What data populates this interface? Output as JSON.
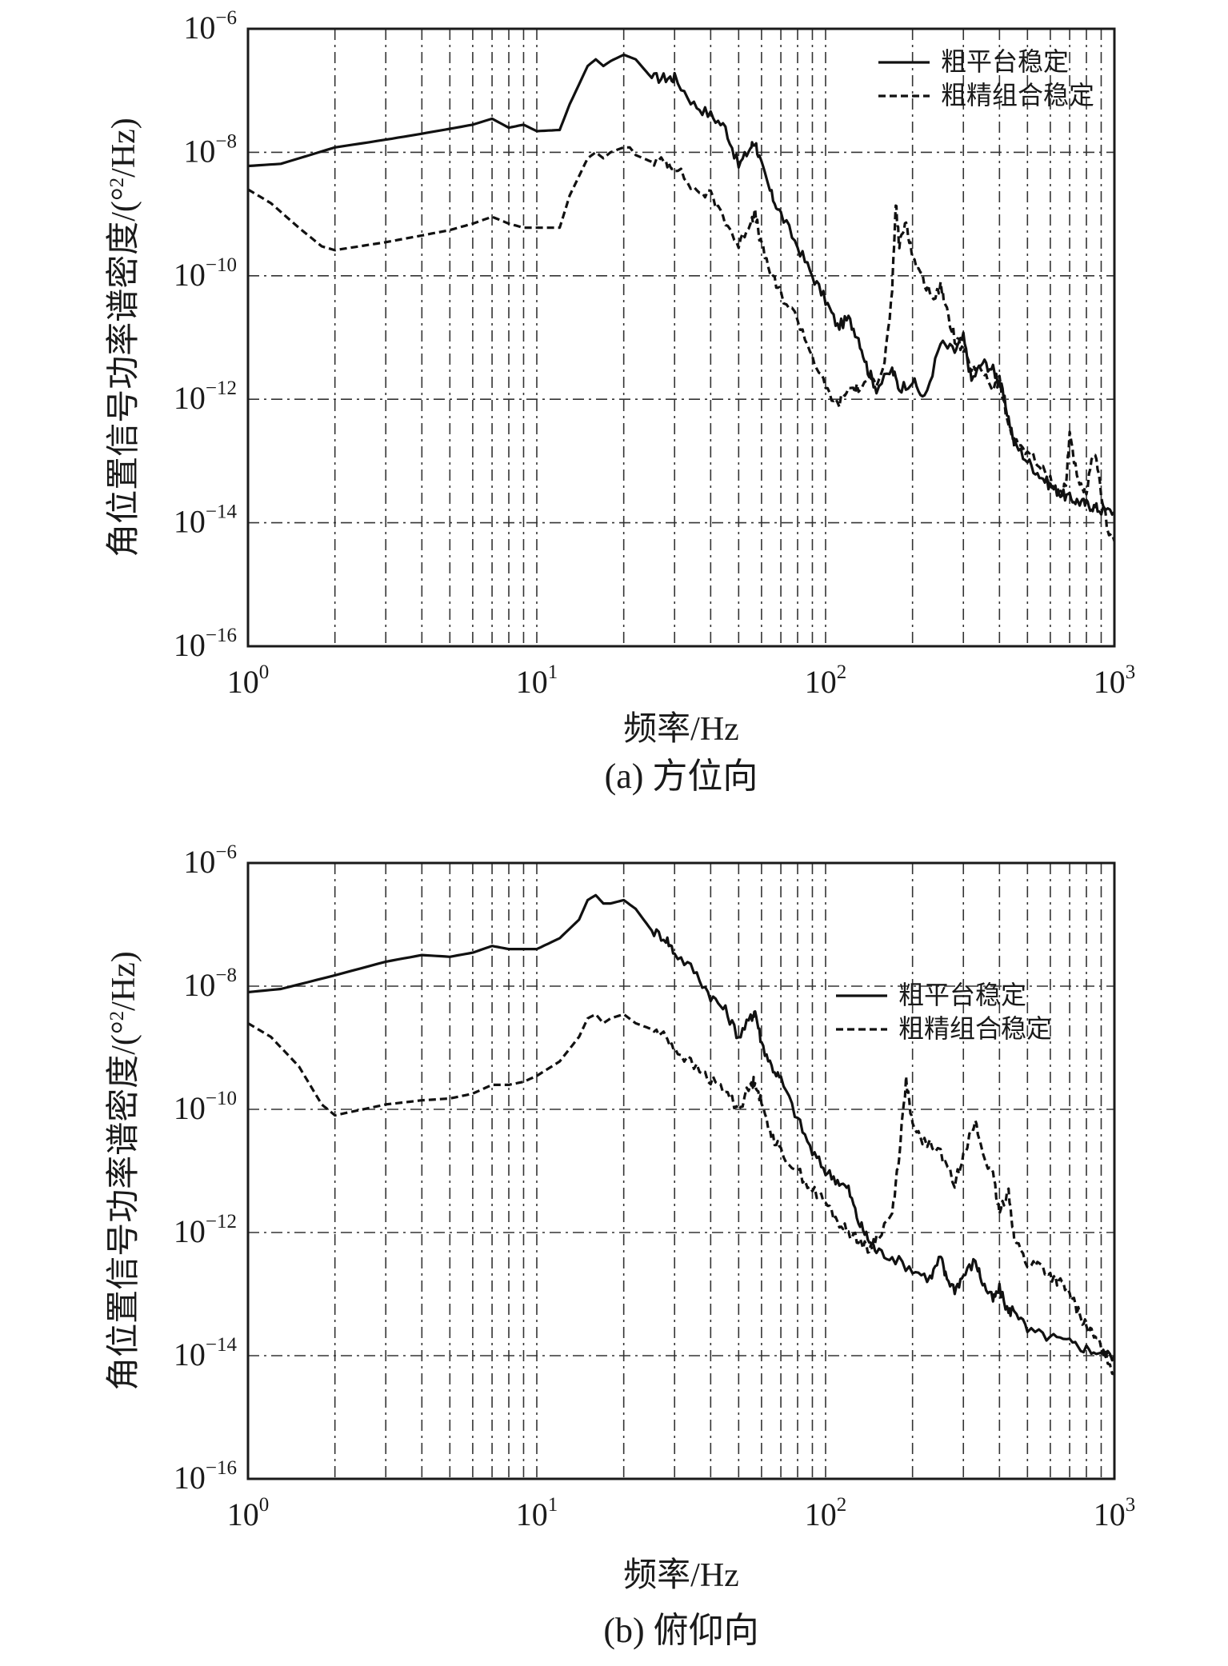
{
  "chart_data": [
    {
      "type": "line",
      "caption": "(a) 方位向",
      "xlabel": "频率/Hz",
      "ylabel_main": "角位置信号功率谱密度/(°",
      "ylabel_sup": "2",
      "ylabel_end": "/Hz)",
      "xscale": "log",
      "yscale": "log",
      "xlim": [
        1,
        1000
      ],
      "ylim": [
        1e-16,
        1e-06
      ],
      "xticks": [
        {
          "base": "10",
          "exp": "0"
        },
        {
          "base": "10",
          "exp": "1"
        },
        {
          "base": "10",
          "exp": "2"
        },
        {
          "base": "10",
          "exp": "3"
        }
      ],
      "yticks": [
        {
          "base": "10",
          "exp": "−6"
        },
        {
          "base": "10",
          "exp": "−8"
        },
        {
          "base": "10",
          "exp": "−10"
        },
        {
          "base": "10",
          "exp": "−12"
        },
        {
          "base": "10",
          "exp": "−14"
        },
        {
          "base": "10",
          "exp": "−16"
        }
      ],
      "grid": true,
      "legend": "top-right",
      "series": [
        {
          "name": "粗平台稳定",
          "style": "solid",
          "x": [
            1,
            1.3,
            2,
            3,
            4,
            5,
            6,
            7,
            8,
            9,
            10,
            12,
            13,
            15,
            16,
            17,
            18,
            20,
            22,
            25,
            28,
            30,
            35,
            40,
            45,
            50,
            55,
            57,
            60,
            65,
            70,
            80,
            90,
            100,
            110,
            120,
            130,
            140,
            150,
            170,
            180,
            200,
            220,
            250,
            280,
            300,
            320,
            350,
            380,
            400,
            420,
            450,
            500,
            550,
            600,
            650,
            700,
            750,
            800,
            850,
            900,
            1000
          ],
          "y": [
            6e-09,
            6.5e-09,
            1.2e-08,
            1.6e-08,
            2e-08,
            2.4e-08,
            2.8e-08,
            3.5e-08,
            2.5e-08,
            2.8e-08,
            2.2e-08,
            2.3e-08,
            6e-08,
            2.5e-07,
            3.2e-07,
            2.5e-07,
            3e-07,
            3.8e-07,
            3.2e-07,
            1.6e-07,
            1.6e-07,
            1.6e-07,
            6e-08,
            4e-08,
            2.5e-08,
            6e-09,
            1.2e-08,
            1.5e-08,
            6e-09,
            2e-09,
            1e-09,
            3e-10,
            1e-10,
            4e-11,
            1.5e-11,
            2e-11,
            1e-11,
            3e-12,
            1.5e-12,
            3e-12,
            1.5e-12,
            2e-12,
            1e-12,
            8e-12,
            6e-12,
            1e-11,
            2e-12,
            4e-12,
            3e-12,
            2e-12,
            8e-13,
            2e-13,
            1e-13,
            6e-14,
            4e-14,
            3e-14,
            2.5e-14,
            2.2e-14,
            2e-14,
            1.8e-14,
            1.6e-14,
            1.5e-14
          ]
        },
        {
          "name": "粗精组合稳定",
          "style": "dashed",
          "x": [
            1,
            1.2,
            1.5,
            1.8,
            2,
            3,
            4,
            5,
            6,
            7,
            8,
            9,
            10,
            12,
            13,
            15,
            16,
            17,
            18,
            20,
            21,
            22,
            25,
            28,
            30,
            35,
            40,
            45,
            50,
            55,
            57,
            60,
            65,
            70,
            80,
            90,
            100,
            110,
            120,
            130,
            150,
            160,
            170,
            175,
            180,
            190,
            200,
            220,
            240,
            250,
            260,
            280,
            300,
            320,
            350,
            380,
            400,
            420,
            450,
            500,
            550,
            600,
            650,
            680,
            700,
            750,
            800,
            850,
            900,
            950,
            1000
          ],
          "y": [
            2.5e-09,
            1.5e-09,
            6e-10,
            3e-10,
            2.6e-10,
            3.5e-10,
            4.5e-10,
            5.5e-10,
            7e-10,
            9e-10,
            7e-10,
            6e-10,
            6e-10,
            6e-10,
            2e-09,
            8e-09,
            1e-08,
            8e-09,
            1e-08,
            1.2e-08,
            1.2e-08,
            9e-09,
            7e-09,
            7e-09,
            6e-09,
            2.5e-09,
            2e-09,
            8e-10,
            3e-10,
            8e-10,
            1e-09,
            3e-10,
            1e-10,
            5e-11,
            2e-11,
            5e-12,
            1.5e-12,
            8e-13,
            1.5e-12,
            1.5e-12,
            2e-12,
            4e-12,
            5e-11,
            1.5e-09,
            3e-10,
            8e-10,
            2e-10,
            8e-11,
            4e-11,
            8e-11,
            3e-11,
            1e-11,
            6e-12,
            3e-12,
            3e-12,
            1.5e-12,
            2e-12,
            6e-13,
            2e-13,
            1.5e-13,
            8e-14,
            5e-14,
            3e-14,
            4e-14,
            3e-13,
            4e-14,
            3e-14,
            1.5e-13,
            3e-14,
            8e-15,
            5e-15
          ]
        }
      ]
    },
    {
      "type": "line",
      "caption": "(b) 俯仰向",
      "xlabel": "频率/Hz",
      "ylabel_main": "角位置信号功率谱密度/(°",
      "ylabel_sup": "2",
      "ylabel_end": "/Hz)",
      "xscale": "log",
      "yscale": "log",
      "xlim": [
        1,
        1000
      ],
      "ylim": [
        1e-16,
        1e-06
      ],
      "xticks": [
        {
          "base": "10",
          "exp": "0"
        },
        {
          "base": "10",
          "exp": "1"
        },
        {
          "base": "10",
          "exp": "2"
        },
        {
          "base": "10",
          "exp": "3"
        }
      ],
      "yticks": [
        {
          "base": "10",
          "exp": "−6"
        },
        {
          "base": "10",
          "exp": "−8"
        },
        {
          "base": "10",
          "exp": "−10"
        },
        {
          "base": "10",
          "exp": "−12"
        },
        {
          "base": "10",
          "exp": "−14"
        },
        {
          "base": "10",
          "exp": "−16"
        }
      ],
      "grid": true,
      "legend": "top-right",
      "series": [
        {
          "name": "粗平台稳定",
          "style": "solid",
          "x": [
            1,
            1.3,
            2,
            3,
            4,
            5,
            6,
            7,
            8,
            9,
            10,
            12,
            14,
            15,
            16,
            17,
            18,
            20,
            22,
            25,
            28,
            30,
            35,
            40,
            45,
            50,
            55,
            57,
            60,
            65,
            70,
            80,
            90,
            100,
            110,
            120,
            130,
            140,
            150,
            170,
            200,
            230,
            250,
            260,
            280,
            300,
            330,
            350,
            380,
            400,
            430,
            450,
            500,
            600,
            700,
            800,
            900,
            1000
          ],
          "y": [
            8e-09,
            9e-09,
            1.5e-08,
            2.5e-08,
            3.2e-08,
            3e-08,
            3.5e-08,
            4.5e-08,
            4e-08,
            4e-08,
            4e-08,
            6e-08,
            1.2e-07,
            2.5e-07,
            3e-07,
            2.2e-07,
            2.2e-07,
            2.5e-07,
            1.8e-07,
            8e-08,
            6e-08,
            3.5e-08,
            1.8e-08,
            7e-09,
            4e-09,
            1.5e-09,
            3e-09,
            4e-09,
            1.2e-09,
            5e-10,
            3e-10,
            7e-11,
            2e-11,
            1e-11,
            7e-12,
            5e-12,
            1.5e-12,
            8e-13,
            5e-13,
            4e-13,
            2.5e-13,
            1.8e-13,
            4e-13,
            2e-13,
            1.2e-13,
            2e-13,
            3.5e-13,
            1.5e-13,
            8e-14,
            1.2e-13,
            5e-14,
            6e-14,
            2.5e-14,
            2e-14,
            1.6e-14,
            1.3e-14,
            1.1e-14,
            1e-14
          ]
        },
        {
          "name": "粗精组合稳定",
          "style": "dashed",
          "x": [
            1,
            1.2,
            1.5,
            1.8,
            2,
            3,
            4,
            5,
            6,
            7,
            8,
            9,
            10,
            12,
            14,
            15,
            16,
            17,
            18,
            20,
            22,
            25,
            28,
            30,
            35,
            40,
            45,
            50,
            55,
            57,
            60,
            65,
            70,
            80,
            90,
            100,
            110,
            120,
            130,
            140,
            150,
            170,
            180,
            190,
            200,
            220,
            250,
            280,
            300,
            330,
            350,
            380,
            400,
            430,
            450,
            500,
            550,
            600,
            650,
            700,
            750,
            800,
            850,
            900,
            1000
          ],
          "y": [
            2.5e-09,
            1.5e-09,
            5e-10,
            1.2e-10,
            8e-11,
            1.2e-10,
            1.4e-10,
            1.5e-10,
            1.8e-10,
            2.5e-10,
            2.5e-10,
            2.8e-10,
            3.5e-10,
            6e-10,
            1.5e-09,
            3e-09,
            3.5e-09,
            2.5e-09,
            3e-09,
            3.5e-09,
            2.5e-09,
            2e-09,
            1.5e-09,
            1e-09,
            5e-10,
            3e-10,
            2e-10,
            1e-10,
            2.5e-10,
            3e-10,
            1.2e-10,
            4e-11,
            2e-11,
            1e-11,
            5e-12,
            3e-12,
            1.5e-12,
            1e-12,
            8e-13,
            5e-13,
            8e-13,
            2e-12,
            2e-11,
            3e-10,
            5e-11,
            3e-11,
            2e-11,
            6e-12,
            2e-11,
            6e-11,
            2e-11,
            8e-12,
            2e-12,
            5e-12,
            8e-13,
            3e-13,
            3e-13,
            2e-13,
            1.5e-13,
            1e-13,
            5e-14,
            3e-14,
            2e-14,
            1.5e-14,
            5e-15
          ]
        }
      ]
    }
  ]
}
